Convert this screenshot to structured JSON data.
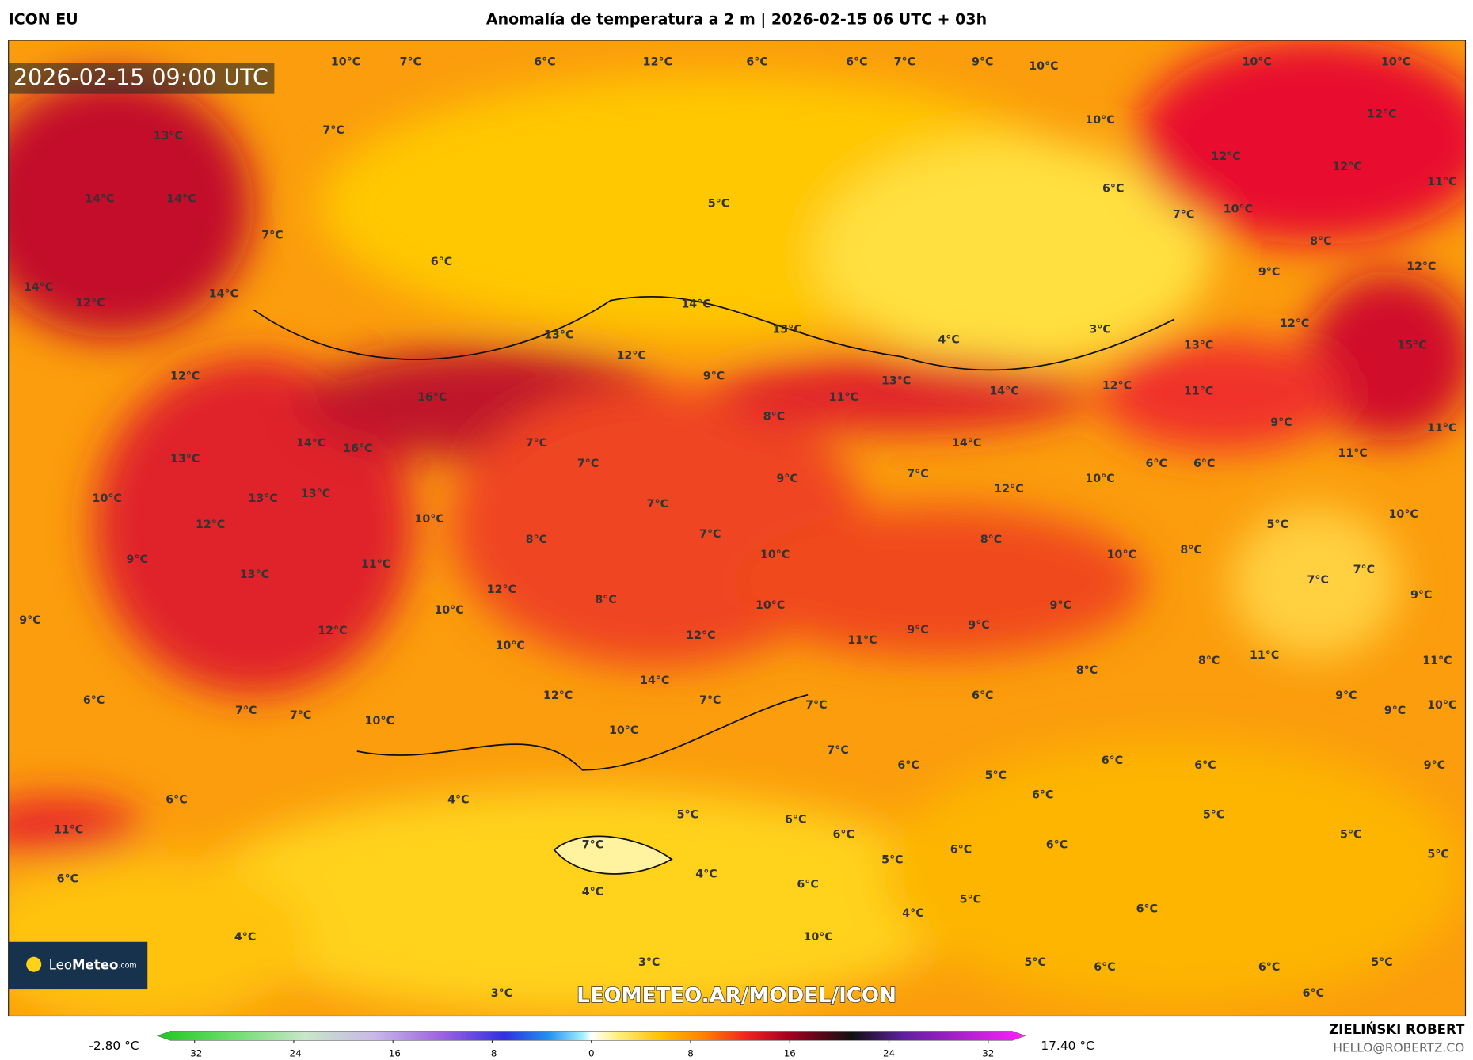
{
  "header": {
    "model": "ICON EU",
    "title": "Anomalía de temperatura a 2 m | 2026-02-15 06 UTC + 03h"
  },
  "map": {
    "timestamp": "2026-02-15 09:00 UTC",
    "watermark": "LEOMETEO.AR/MODEL/ICON",
    "logo": {
      "name": "Leo",
      "name_bold": "Meteo",
      "suffix": ".com"
    },
    "labels": [
      "10°C",
      "7°C",
      "6°C",
      "12°C",
      "6°C",
      "6°C",
      "7°C",
      "9°C",
      "10°C",
      "10°C",
      "10°C",
      "13°C",
      "7°C",
      "10°C",
      "12°C",
      "14°C",
      "14°C",
      "5°C",
      "12°C",
      "12°C",
      "6°C",
      "11°C",
      "7°C",
      "7°C",
      "10°C",
      "8°C",
      "14°C",
      "6°C",
      "9°C",
      "12°C",
      "12°C",
      "14°C",
      "14°C",
      "13°C",
      "13°C",
      "4°C",
      "3°C",
      "12°C",
      "13°C",
      "15°C",
      "12°C",
      "12°C",
      "9°C",
      "13°C",
      "14°C",
      "12°C",
      "11°C",
      "16°C",
      "11°C",
      "8°C",
      "9°C",
      "11°C",
      "14°C",
      "16°C",
      "7°C",
      "14°C",
      "11°C",
      "13°C",
      "7°C",
      "6°C",
      "6°C",
      "10°C",
      "13°C",
      "13°C",
      "9°C",
      "7°C",
      "10°C",
      "12°C",
      "12°C",
      "10°C",
      "7°C",
      "5°C",
      "10°C",
      "8°C",
      "7°C",
      "8°C",
      "9°C",
      "11°C",
      "10°C",
      "10°C",
      "8°C",
      "7°C",
      "7°C",
      "13°C",
      "12°C",
      "8°C",
      "10°C",
      "9°C",
      "9°C",
      "9°C",
      "10°C",
      "12°C",
      "9°C",
      "9°C",
      "10°C",
      "12°C",
      "11°C",
      "11°C",
      "8°C",
      "11°C",
      "14°C",
      "8°C",
      "12°C",
      "7°C",
      "6°C",
      "9°C",
      "6°C",
      "7°C",
      "7°C",
      "7°C",
      "9°C",
      "10°C",
      "10°C",
      "10°C",
      "7°C",
      "6°C",
      "6°C",
      "6°C",
      "9°C",
      "5°C",
      "6°C",
      "4°C",
      "6°C",
      "5°C",
      "6°C",
      "5°C",
      "11°C",
      "6°C",
      "5°C",
      "7°C",
      "6°C",
      "5°C",
      "6°C",
      "5°C",
      "4°C",
      "6°C",
      "6°C",
      "4°C",
      "5°C",
      "6°C",
      "4°C",
      "4°C",
      "10°C",
      "3°C",
      "5°C",
      "6°C",
      "6°C",
      "5°C",
      "3°C",
      "6°C"
    ]
  },
  "colorbar": {
    "clim": [
      -35,
      35
    ],
    "ticks": [
      -32,
      -24,
      -16,
      -8,
      0,
      8,
      16,
      24,
      32
    ],
    "min_label": "-2.80 °C",
    "max_label": "17.40 °C"
  },
  "footer": {
    "author": "ZIELIŃSKI ROBERT",
    "contact": "HELLO@ROBERTZ.CO"
  }
}
